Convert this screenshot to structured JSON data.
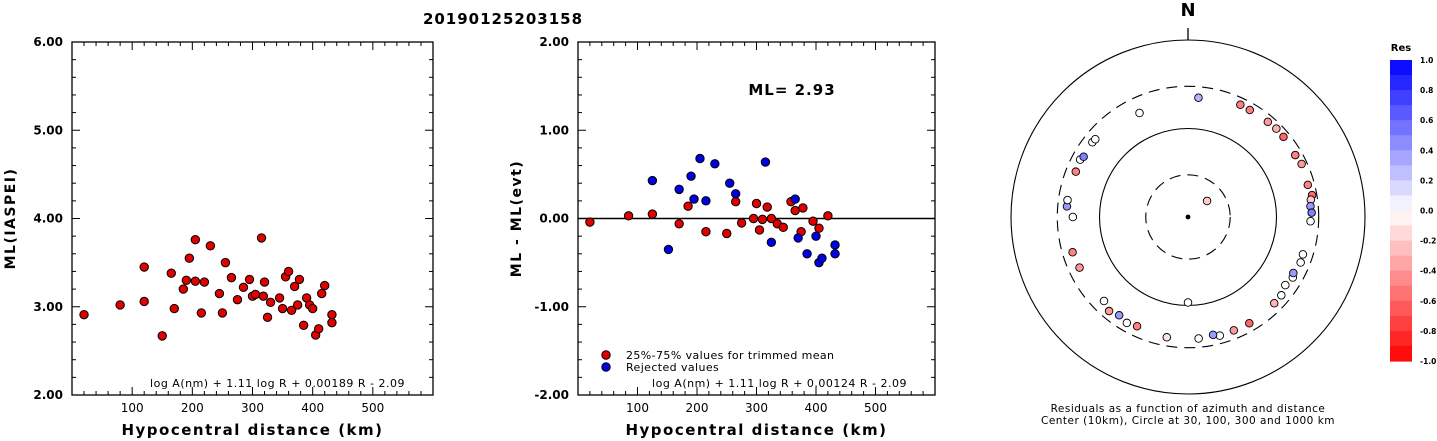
{
  "title": "20190125203158",
  "chart_data": [
    {
      "type": "scatter",
      "ylabel": "ML(IASPEI)",
      "xlabel": "Hypocentral distance (km)",
      "xlim": [
        0,
        600
      ],
      "ylim": [
        2.0,
        6.0
      ],
      "xticks": [
        "100",
        "200",
        "300",
        "400",
        "500"
      ],
      "yticks": [
        "2.00",
        "3.00",
        "4.00",
        "5.00",
        "6.00"
      ],
      "annotation": "log A(nm) + 1.11 log R + 0.00189 R - 2.09",
      "series": [
        {
          "color": "#e00000",
          "points": [
            [
              20,
              2.91
            ],
            [
              80,
              3.02
            ],
            [
              120,
              3.06
            ],
            [
              120,
              3.45
            ],
            [
              150,
              2.67
            ],
            [
              165,
              3.38
            ],
            [
              170,
              2.98
            ],
            [
              185,
              3.2
            ],
            [
              190,
              3.3
            ],
            [
              195,
              3.55
            ],
            [
              205,
              3.29
            ],
            [
              205,
              3.76
            ],
            [
              215,
              2.93
            ],
            [
              220,
              3.28
            ],
            [
              230,
              3.69
            ],
            [
              245,
              3.15
            ],
            [
              250,
              2.93
            ],
            [
              255,
              3.5
            ],
            [
              265,
              3.33
            ],
            [
              275,
              3.08
            ],
            [
              285,
              3.22
            ],
            [
              295,
              3.31
            ],
            [
              300,
              3.12
            ],
            [
              305,
              3.14
            ],
            [
              315,
              3.78
            ],
            [
              318,
              3.12
            ],
            [
              320,
              3.28
            ],
            [
              325,
              2.88
            ],
            [
              330,
              3.05
            ],
            [
              345,
              3.1
            ],
            [
              350,
              2.98
            ],
            [
              355,
              3.34
            ],
            [
              360,
              3.4
            ],
            [
              365,
              2.96
            ],
            [
              370,
              3.23
            ],
            [
              375,
              3.02
            ],
            [
              378,
              3.31
            ],
            [
              385,
              2.79
            ],
            [
              390,
              3.1
            ],
            [
              395,
              3.02
            ],
            [
              400,
              2.98
            ],
            [
              405,
              2.68
            ],
            [
              410,
              2.75
            ],
            [
              415,
              3.15
            ],
            [
              420,
              3.24
            ],
            [
              432,
              2.91
            ],
            [
              432,
              2.82
            ]
          ]
        }
      ]
    },
    {
      "type": "scatter",
      "ylabel": "ML - ML(evt)",
      "xlabel": "Hypocentral distance (km)",
      "xlim": [
        0,
        600
      ],
      "ylim": [
        -2.0,
        2.0
      ],
      "xticks": [
        "100",
        "200",
        "300",
        "400",
        "500"
      ],
      "yticks": [
        "-2.00",
        "-1.00",
        "0.00",
        "1.00",
        "2.00"
      ],
      "reference_line": 0,
      "ml_label": "ML= 2.93",
      "legend": [
        {
          "label": "25%-75% values for trimmed mean",
          "color": "#e00000"
        },
        {
          "label": "Rejected values",
          "color": "#0000e0"
        }
      ],
      "legend_position": "bottom-left",
      "annotation": "log A(nm) + 1.11 log R + 0.00124 R - 2.09",
      "series": [
        {
          "name": "25%-75% values for trimmed mean",
          "color": "#e00000",
          "points": [
            [
              20,
              -0.04
            ],
            [
              85,
              0.03
            ],
            [
              125,
              0.05
            ],
            [
              170,
              -0.06
            ],
            [
              185,
              0.14
            ],
            [
              215,
              -0.15
            ],
            [
              250,
              -0.17
            ],
            [
              265,
              0.19
            ],
            [
              275,
              -0.05
            ],
            [
              295,
              0.0
            ],
            [
              300,
              0.17
            ],
            [
              305,
              -0.13
            ],
            [
              310,
              -0.01
            ],
            [
              318,
              0.13
            ],
            [
              325,
              0.0
            ],
            [
              335,
              -0.06
            ],
            [
              345,
              -0.1
            ],
            [
              358,
              0.19
            ],
            [
              365,
              0.09
            ],
            [
              375,
              -0.15
            ],
            [
              378,
              0.12
            ],
            [
              395,
              -0.03
            ],
            [
              405,
              -0.11
            ],
            [
              420,
              0.03
            ]
          ]
        },
        {
          "name": "Rejected values",
          "color": "#0000e0",
          "points": [
            [
              125,
              0.43
            ],
            [
              152,
              -0.35
            ],
            [
              170,
              0.33
            ],
            [
              190,
              0.48
            ],
            [
              195,
              0.22
            ],
            [
              205,
              0.68
            ],
            [
              215,
              0.2
            ],
            [
              230,
              0.62
            ],
            [
              255,
              0.4
            ],
            [
              265,
              0.28
            ],
            [
              315,
              0.64
            ],
            [
              325,
              -0.27
            ],
            [
              365,
              0.22
            ],
            [
              370,
              -0.22
            ],
            [
              385,
              -0.4
            ],
            [
              400,
              -0.2
            ],
            [
              405,
              -0.5
            ],
            [
              410,
              -0.45
            ],
            [
              432,
              -0.3
            ],
            [
              432,
              -0.4
            ]
          ]
        }
      ]
    },
    {
      "type": "polar-scatter",
      "north_label": "N",
      "caption_line1": "Residuals as a function of azimuth and distance",
      "caption_line2": "Center (10km), Circle at 30, 100, 300 and 1000 km",
      "rings_km": [
        30,
        100,
        300,
        1000
      ],
      "colorbar": {
        "title": "Res",
        "ticks": [
          "1.0",
          "0.8",
          "0.6",
          "0.4",
          "0.2",
          "0.0",
          "-0.2",
          "-0.4",
          "-0.6",
          "-0.8",
          "-1.0"
        ]
      },
      "points": [
        [
          50,
          19.1,
          -0.2
        ],
        [
          180,
          92.5,
          0.0
        ],
        [
          5,
          225,
          0.3
        ],
        [
          335,
          198,
          0.0
        ],
        [
          25,
          251,
          -0.5
        ],
        [
          30,
          249,
          -0.5
        ],
        [
          40,
          253,
          -0.4
        ],
        [
          45,
          258,
          -0.3
        ],
        [
          50,
          256,
          -0.6
        ],
        [
          60,
          251,
          -0.5
        ],
        [
          65,
          261,
          -0.4
        ],
        [
          75,
          252,
          -0.5
        ],
        [
          80,
          265,
          -0.6
        ],
        [
          82,
          252,
          -0.2
        ],
        [
          85,
          245,
          0.4
        ],
        [
          88,
          250,
          0.5
        ],
        [
          92,
          243,
          0.0
        ],
        [
          108,
          232,
          0.0
        ],
        [
          112,
          236,
          0.0
        ],
        [
          120,
          233,
          0.0
        ],
        [
          125,
          220,
          0.0
        ],
        [
          118,
          223,
          0.4
        ],
        [
          130,
          238,
          0.0
        ],
        [
          135,
          239,
          -0.3
        ],
        [
          150,
          243,
          -0.6
        ],
        [
          158,
          241,
          -0.4
        ],
        [
          165,
          244,
          0.0
        ],
        [
          168,
          230,
          0.4
        ],
        [
          175,
          239,
          0.0
        ],
        [
          190,
          240,
          -0.1
        ],
        [
          205,
          230,
          -0.5
        ],
        [
          210,
          241,
          0.0
        ],
        [
          215,
          227,
          0.4
        ],
        [
          220,
          244,
          -0.4
        ],
        [
          225,
          220,
          0.0
        ],
        [
          245,
          225,
          -0.4
        ],
        [
          253,
          231,
          -0.5
        ],
        [
          270,
          200,
          0.0
        ],
        [
          275,
          236,
          0.4
        ],
        [
          278,
          237,
          0.0
        ],
        [
          298,
          240,
          0.0
        ],
        [
          292,
          233,
          -0.5
        ],
        [
          300,
          230,
          0.5
        ],
        [
          308,
          235,
          0.0
        ],
        [
          310,
          233,
          0.0
        ]
      ]
    }
  ]
}
